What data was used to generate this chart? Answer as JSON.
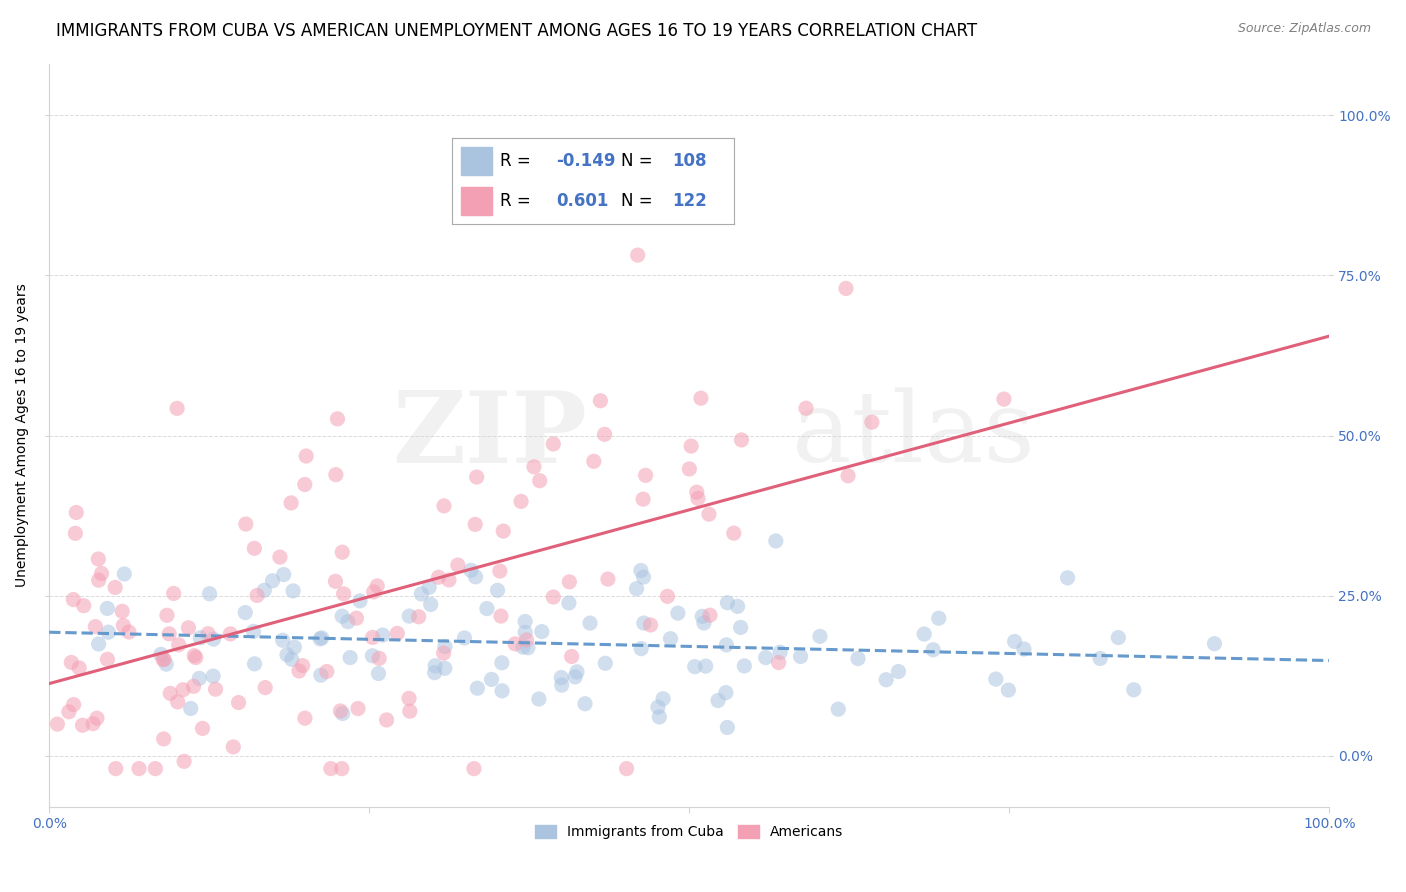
{
  "title": "IMMIGRANTS FROM CUBA VS AMERICAN UNEMPLOYMENT AMONG AGES 16 TO 19 YEARS CORRELATION CHART",
  "source": "Source: ZipAtlas.com",
  "ylabel": "Unemployment Among Ages 16 to 19 years",
  "watermark": "ZIPatlas",
  "series1_label": "Immigrants from Cuba",
  "series2_label": "Americans",
  "series1_color": "#aac4e0",
  "series2_color": "#f4a0b4",
  "line1_color": "#6699cc",
  "line2_color": "#e0607a",
  "r1": -0.149,
  "r2": 0.601,
  "n1": 108,
  "n2": 122,
  "xlim": [
    0.0,
    1.0
  ],
  "ylim": [
    -0.08,
    1.08
  ],
  "y_ticks": [
    0.0,
    0.25,
    0.5,
    0.75,
    1.0
  ],
  "y_tick_labels": [
    "0.0%",
    "25.0%",
    "50.0%",
    "75.0%",
    "100.0%"
  ],
  "x_tick_labels_left": "0.0%",
  "x_tick_labels_right": "100.0%",
  "title_fontsize": 12,
  "axis_label_fontsize": 10,
  "tick_fontsize": 10,
  "tick_color": "#4472c4",
  "background_color": "#ffffff",
  "grid_color": "#cccccc",
  "seed1": 42,
  "seed2": 7,
  "legend_r1_val": "-0.149",
  "legend_n1_val": "108",
  "legend_r2_val": "0.601",
  "legend_n2_val": "122"
}
